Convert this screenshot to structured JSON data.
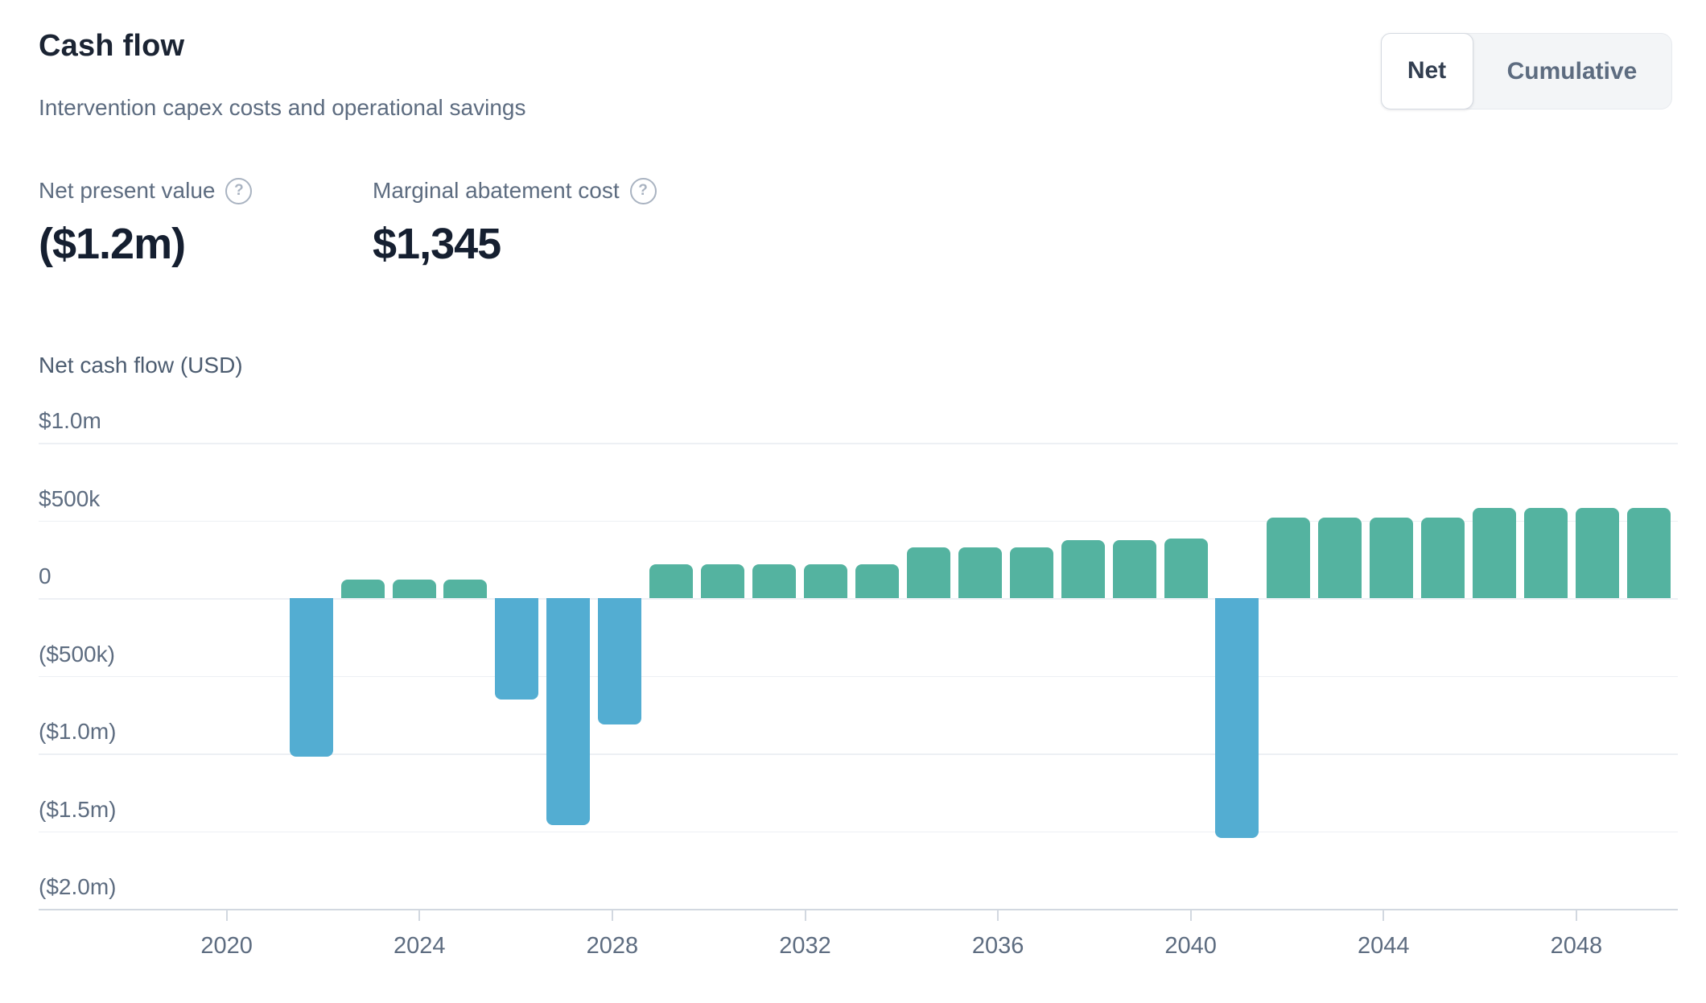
{
  "header": {
    "title": "Cash flow",
    "subtitle": "Intervention capex costs and operational savings",
    "toggle": {
      "options": [
        "Net",
        "Cumulative"
      ],
      "active": "Net"
    },
    "metrics": [
      {
        "label": "Net present value",
        "value": "($1.2m)",
        "icon": "question-circle"
      },
      {
        "label": "Marginal abatement cost",
        "value": "$1,345",
        "icon": "question-circle"
      }
    ]
  },
  "icons": {
    "help_glyph": "?"
  },
  "chart_data": {
    "type": "bar",
    "title": "Net cash flow (USD)",
    "xlabel": "",
    "ylabel": "Net cash flow (USD)",
    "ylim": [
      -2000,
      1000
    ],
    "grid": true,
    "legend_position": "none",
    "units": "USD thousands",
    "years": [
      2022,
      2023,
      2024,
      2025,
      2026,
      2027,
      2028,
      2029,
      2030,
      2031,
      2032,
      2033,
      2034,
      2035,
      2036,
      2037,
      2038,
      2039,
      2040,
      2041,
      2042,
      2043,
      2044,
      2045,
      2046,
      2047,
      2048
    ],
    "values_usd_k": [
      -1020,
      120,
      120,
      120,
      -650,
      -1460,
      -810,
      220,
      220,
      220,
      220,
      220,
      330,
      330,
      330,
      375,
      375,
      385,
      -1540,
      520,
      520,
      520,
      520,
      580,
      580,
      580,
      580
    ],
    "y_ticks": [
      {
        "label": "$1.0m",
        "value": 1000
      },
      {
        "label": "$500k",
        "value": 500
      },
      {
        "label": "0",
        "value": 0
      },
      {
        "label": "($500k)",
        "value": -500
      },
      {
        "label": "($1.0m)",
        "value": -1000
      },
      {
        "label": "($1.5m)",
        "value": -1500
      },
      {
        "label": "($2.0m)",
        "value": -2000
      }
    ],
    "x_ticks": [
      2020,
      2024,
      2028,
      2032,
      2036,
      2040,
      2044,
      2048
    ],
    "positive_color": "#54b3a0",
    "negative_color": "#53add2",
    "gridline_color": "#edf0f4",
    "axis_color": "#d2d8e0",
    "label_color": "#5d6c80"
  }
}
